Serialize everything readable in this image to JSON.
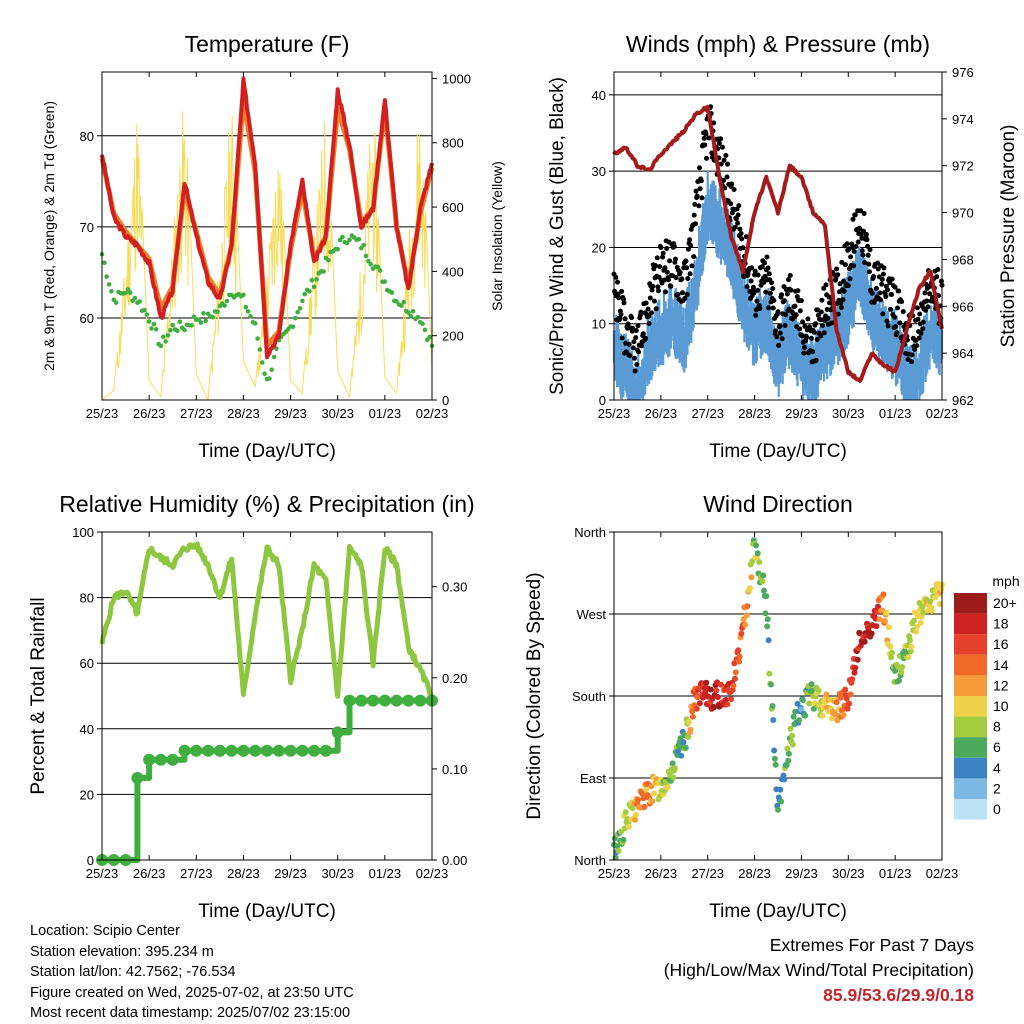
{
  "ticks": [
    "25/23",
    "26/23",
    "27/23",
    "28/23",
    "29/23",
    "30/23",
    "01/23",
    "02/23"
  ],
  "time_label": "Time (Day/UTC)",
  "colors": {
    "t2m": "#d21f1f",
    "t9m": "#f07f2a",
    "td": "#3fae3f",
    "sol": "#f7dc5a",
    "wind": "#5b9bd5",
    "gust": "#000000",
    "pres": "#a31b1b",
    "rh": "#8dc63f",
    "precip": "#3fae3f"
  },
  "speed_scale": {
    "unit": "mph",
    "labels": [
      "20+",
      "18",
      "16",
      "14",
      "12",
      "10",
      "8",
      "6",
      "4",
      "2",
      "0"
    ],
    "colors": [
      "#9c1b1b",
      "#cc2222",
      "#e4402a",
      "#f06a2a",
      "#f79a3a",
      "#eed24a",
      "#a3cc3e",
      "#4caa5c",
      "#3d83c4",
      "#7cb8e4",
      "#bde3f6"
    ]
  },
  "location": "Location: Scipio Center",
  "elevation": "Station elevation: 395.234 m",
  "latlon": "Station lat/lon: 42.7562; -76.534",
  "created": "Figure created on Wed, 2025-07-02, at 23:50 UTC",
  "recent": "Most recent data timestamp: 2025/07/02 23:15:00",
  "extremes": {
    "title": "Extremes For Past 7 Days",
    "subtitle": "(High/Low/Max Wind/Total Precipitation)",
    "value": "85.9/53.6/29.9/0.18"
  },
  "chart_data": [
    {
      "type": "line",
      "title": "Temperature (F)",
      "xlabel": "Time (Day/UTC)",
      "ylabel": "2m & 9m T (Red, Orange) & 2m Td (Green)",
      "y2label": "Solar Insolation (Yellow)",
      "ylim": [
        51,
        87
      ],
      "y2lim": [
        0,
        1020
      ],
      "yticks": [
        "60",
        "70",
        "80"
      ],
      "y2ticks": [
        "0",
        "200",
        "400",
        "600",
        "800",
        "1000"
      ],
      "x": [
        0,
        0.25,
        0.5,
        0.75,
        1,
        1.25,
        1.5,
        1.75,
        2,
        2.25,
        2.5,
        2.75,
        3,
        3.25,
        3.5,
        3.75,
        4,
        4.25,
        4.5,
        4.75,
        5,
        5.25,
        5.5,
        5.75,
        6,
        6.25,
        6.5,
        6.75,
        7
      ],
      "series": [
        {
          "key": "t2m",
          "values": [
            78,
            71,
            69,
            68,
            66,
            60,
            63,
            75,
            69,
            64,
            62,
            68,
            86,
            77,
            56,
            58,
            68,
            75,
            66,
            69,
            85,
            79,
            70,
            72,
            84,
            70,
            63,
            72,
            77
          ]
        },
        {
          "key": "t9m",
          "values": [
            77.5,
            71.5,
            69.5,
            68,
            66.5,
            61,
            63.5,
            74,
            69.5,
            64.5,
            62.5,
            68,
            84,
            76,
            57,
            58.5,
            67.5,
            74,
            66.5,
            69,
            83,
            78.5,
            70.5,
            72,
            83,
            70,
            63.5,
            71.5,
            76.5
          ]
        },
        {
          "key": "td",
          "values": [
            67,
            62,
            63,
            62,
            60,
            57,
            59,
            59,
            60,
            60,
            61,
            63,
            62,
            59,
            53,
            57,
            59,
            62,
            64,
            66,
            68,
            69,
            68,
            66,
            64,
            62,
            61,
            60,
            57
          ]
        }
      ],
      "solar": [
        0,
        30,
        450,
        950,
        60,
        10,
        520,
        980,
        80,
        0,
        480,
        960,
        120,
        40,
        420,
        890,
        60,
        20,
        520,
        940,
        90,
        10,
        450,
        970,
        70,
        20,
        500,
        980,
        100
      ]
    },
    {
      "type": "line",
      "title": "Winds (mph) & Pressure (mb)",
      "xlabel": "Time (Day/UTC)",
      "ylabel": "Sonic/Prop Wind & Gust (Blue, Black)",
      "y2label": "Station Pressure (Maroon)",
      "ylim": [
        0,
        43
      ],
      "y2lim": [
        962,
        976
      ],
      "yticks": [
        "0",
        "10",
        "20",
        "30",
        "40"
      ],
      "y2ticks": [
        "962",
        "964",
        "966",
        "968",
        "970",
        "972",
        "974",
        "976"
      ],
      "x": [
        0,
        0.25,
        0.5,
        0.75,
        1,
        1.25,
        1.5,
        1.75,
        2,
        2.25,
        2.5,
        2.75,
        3,
        3.25,
        3.5,
        3.75,
        4,
        4.25,
        4.5,
        4.75,
        5,
        5.25,
        5.5,
        5.75,
        6,
        6.25,
        6.5,
        6.75,
        7
      ],
      "series": [
        {
          "key": "wind",
          "values": [
            8,
            5,
            2,
            8,
            10,
            12,
            9,
            16,
            27,
            24,
            20,
            14,
            10,
            12,
            6,
            10,
            6,
            4,
            8,
            10,
            13,
            18,
            12,
            10,
            8,
            4,
            5,
            10,
            9
          ]
        },
        {
          "key": "gust",
          "values": [
            14,
            9,
            6,
            13,
            17,
            18,
            15,
            24,
            36,
            32,
            26,
            20,
            14,
            16,
            10,
            14,
            10,
            7,
            12,
            14,
            18,
            24,
            16,
            14,
            12,
            8,
            9,
            15,
            13
          ]
        },
        {
          "key": "pres",
          "values": [
            972.5,
            972.8,
            972,
            971.8,
            972.5,
            973,
            973.5,
            974.2,
            974.5,
            971.5,
            969,
            967.5,
            970,
            971.5,
            970,
            972,
            971.5,
            970,
            969.5,
            965,
            963.2,
            962.8,
            964,
            963.5,
            963.2,
            965,
            966.7,
            967.5,
            965
          ]
        }
      ]
    },
    {
      "type": "line",
      "title": "Relative Humidity (%) & Precipitation (in)",
      "xlabel": "Time (Day/UTC)",
      "ylabel": "Percent & Total Rainfall",
      "ylim": [
        0,
        100
      ],
      "y2lim": [
        0,
        0.36
      ],
      "yticks": [
        "0",
        "20",
        "40",
        "60",
        "80",
        "100"
      ],
      "y2ticks": [
        "0.00",
        "0.10",
        "0.20",
        "0.30"
      ],
      "x": [
        0,
        0.25,
        0.5,
        0.75,
        1,
        1.25,
        1.5,
        1.75,
        2,
        2.25,
        2.5,
        2.75,
        3,
        3.25,
        3.5,
        3.75,
        4,
        4.25,
        4.5,
        4.75,
        5,
        5.25,
        5.5,
        5.75,
        6,
        6.25,
        6.5,
        6.75,
        7
      ],
      "series": [
        {
          "key": "rh",
          "values": [
            66,
            80,
            82,
            75,
            95,
            92,
            90,
            95,
            96,
            90,
            80,
            92,
            50,
            75,
            95,
            90,
            55,
            70,
            90,
            85,
            50,
            95,
            90,
            60,
            95,
            90,
            65,
            58,
            50
          ]
        },
        {
          "key": "precip",
          "values": [
            0,
            0,
            0,
            0.09,
            0.11,
            0.11,
            0.11,
            0.12,
            0.12,
            0.12,
            0.12,
            0.12,
            0.12,
            0.12,
            0.12,
            0.12,
            0.12,
            0.12,
            0.12,
            0.12,
            0.14,
            0.175,
            0.175,
            0.175,
            0.175,
            0.175,
            0.175,
            0.175,
            0.175
          ]
        }
      ]
    },
    {
      "type": "scatter",
      "title": "Wind Direction",
      "xlabel": "Time (Day/UTC)",
      "ylabel": "Direction (Colored By Speed)",
      "ylim": [
        0,
        360
      ],
      "yticks": [
        "North",
        "East",
        "South",
        "West",
        "North"
      ],
      "x": [
        0,
        0.25,
        0.5,
        0.75,
        1,
        1.25,
        1.5,
        1.75,
        2,
        2.25,
        2.5,
        2.75,
        3,
        3.25,
        3.5,
        3.75,
        4,
        4.25,
        4.5,
        4.75,
        5,
        5.25,
        5.5,
        5.75,
        6,
        6.25,
        6.5,
        6.75,
        7
      ],
      "direction": [
        10,
        40,
        60,
        75,
        80,
        100,
        130,
        180,
        180,
        180,
        185,
        250,
        350,
        280,
        50,
        130,
        170,
        180,
        170,
        165,
        180,
        240,
        260,
        280,
        200,
        230,
        270,
        280,
        300
      ],
      "speed": [
        5,
        8,
        12,
        13,
        9,
        8,
        5,
        16,
        19,
        18,
        16,
        14,
        8,
        7,
        4,
        6,
        4,
        8,
        10,
        12,
        15,
        18,
        19,
        12,
        6,
        8,
        10,
        9,
        10
      ]
    }
  ]
}
